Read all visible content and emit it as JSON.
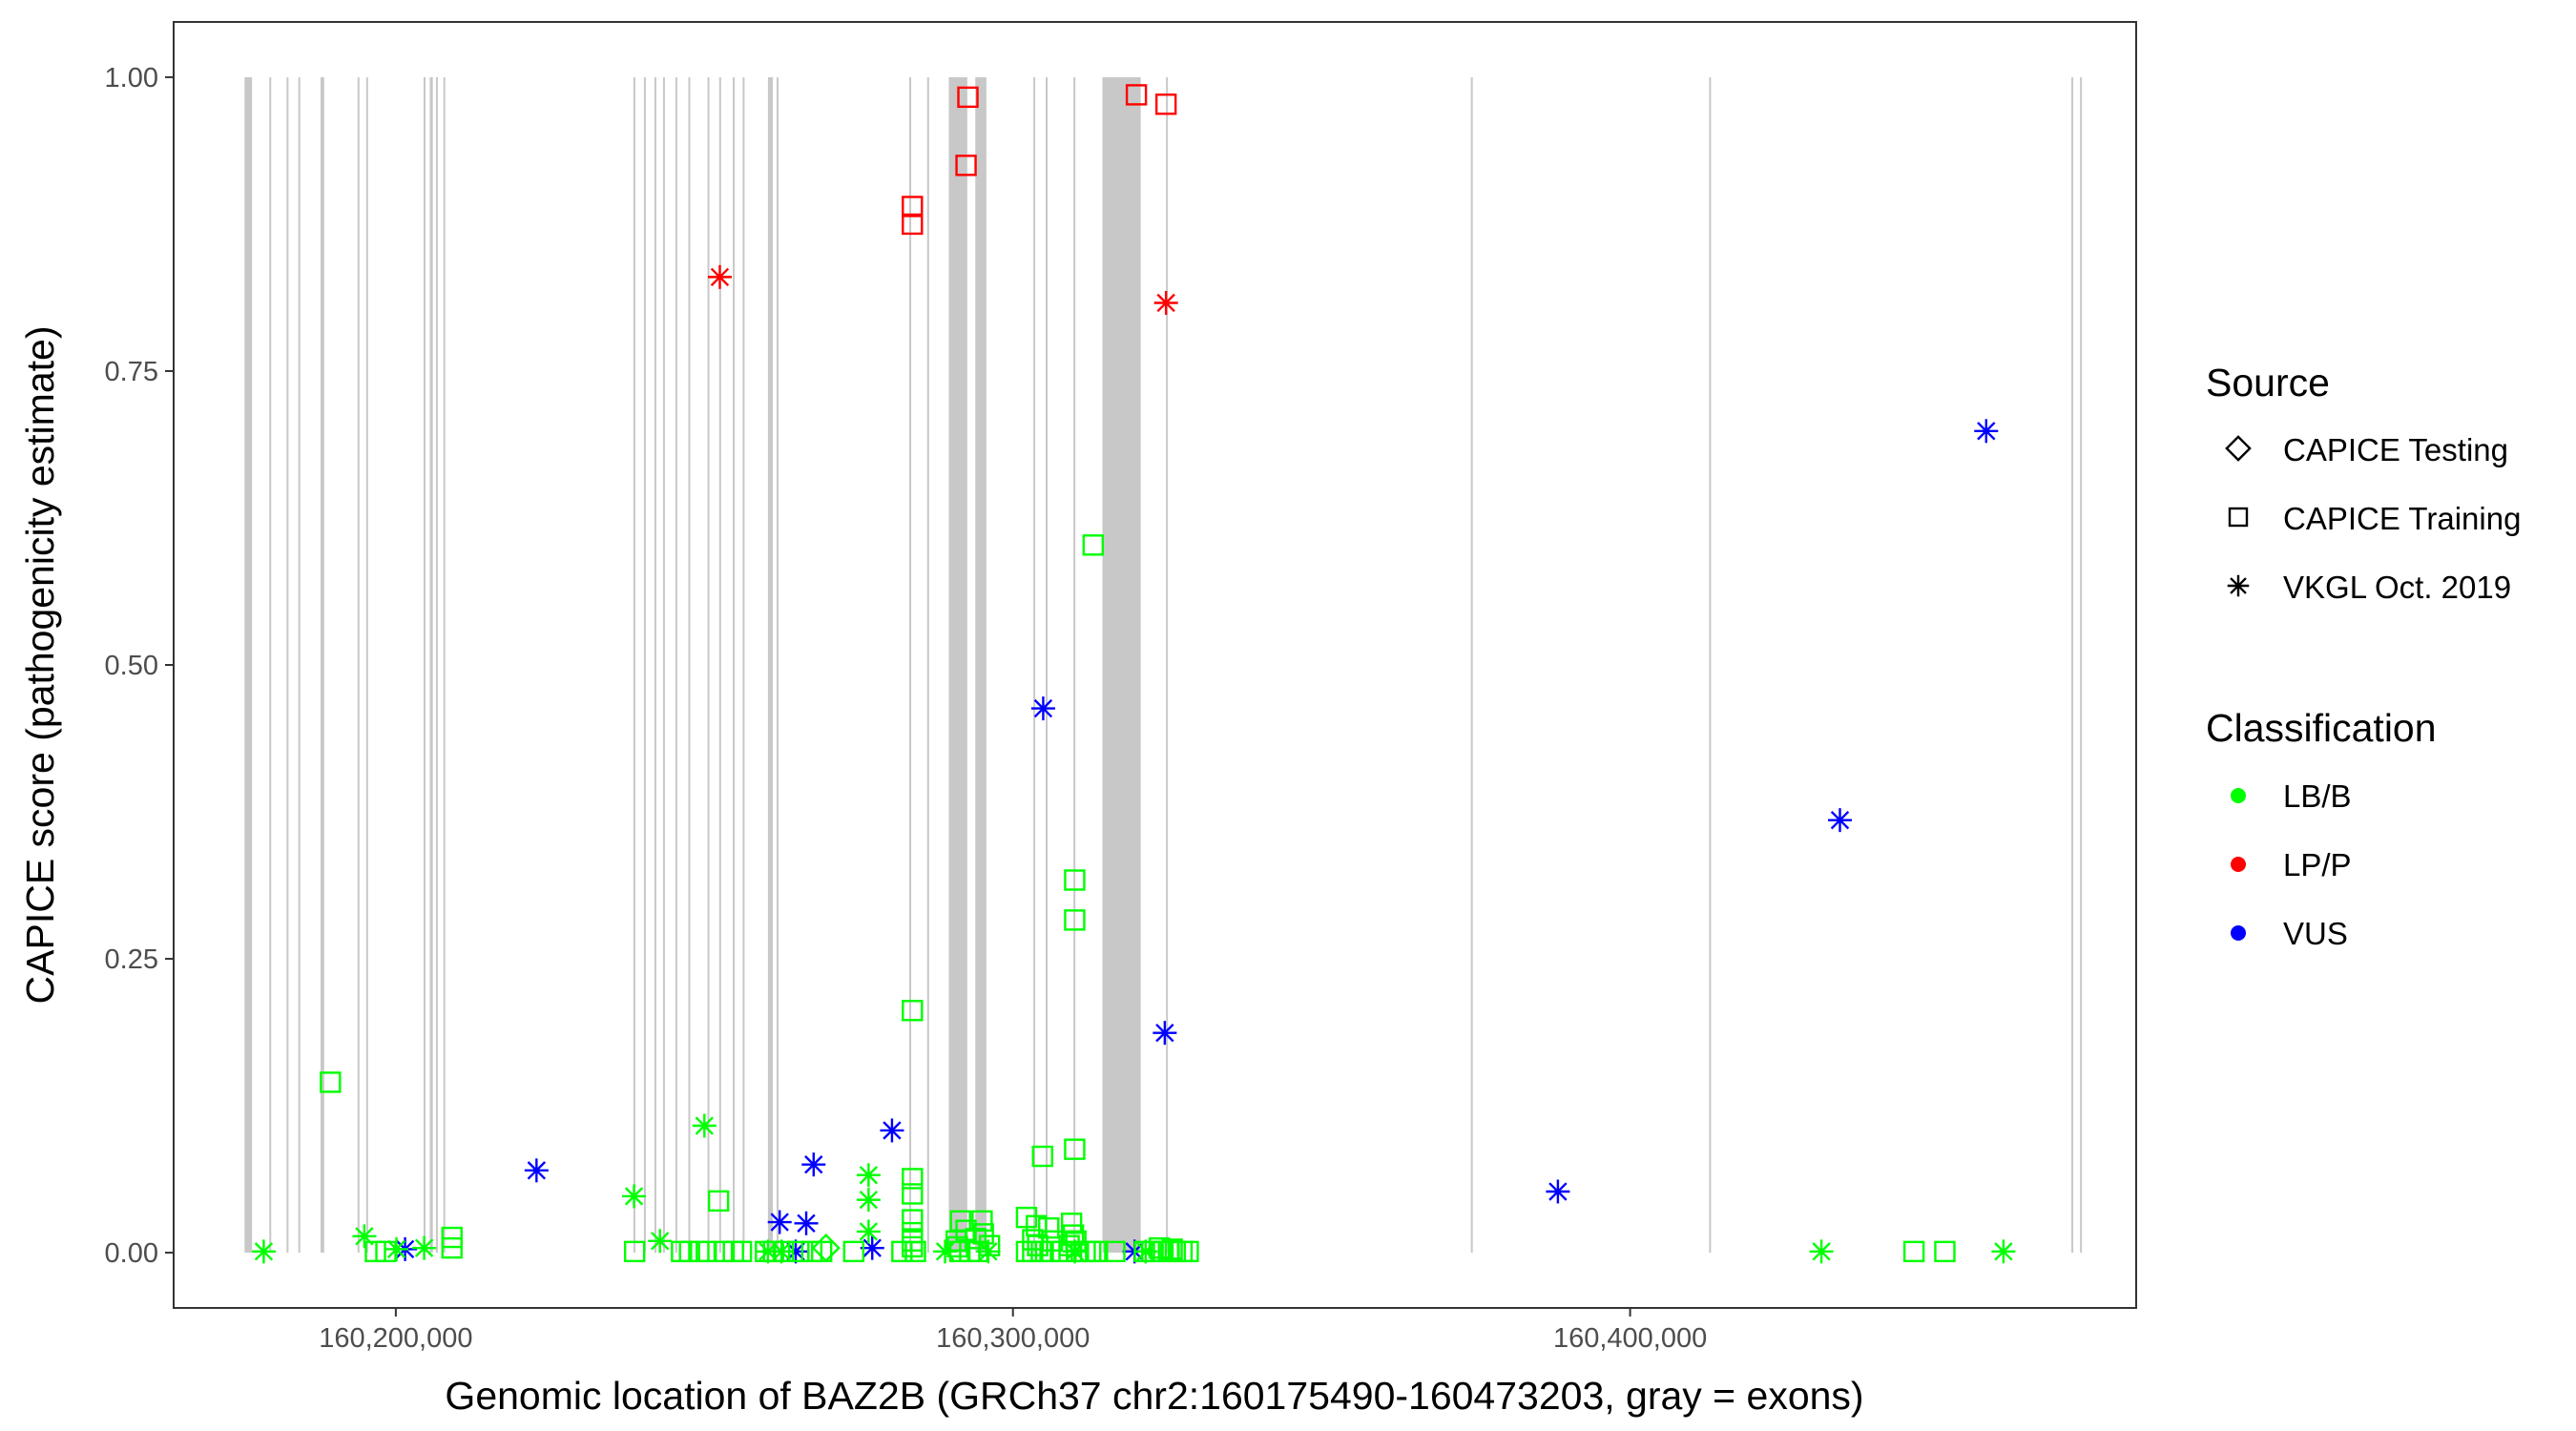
{
  "chart_data": {
    "type": "scatter",
    "xlabel": "Genomic location of BAZ2B (GRCh37 chr2:160175490-160473203, gray = exons)",
    "ylabel": "CAPICE score (pathogenicity estimate)",
    "xlim": [
      160164000,
      160482000
    ],
    "ylim": [
      -0.047,
      1.047
    ],
    "x_ticks": [
      160200000,
      160300000,
      160400000
    ],
    "x_tick_labels": [
      "160,200,000",
      "160,300,000",
      "160,400,000"
    ],
    "y_ticks": [
      0,
      0.25,
      0.5,
      0.75,
      1
    ],
    "y_tick_labels": [
      "0.00",
      "0.25",
      "0.50",
      "0.75",
      "1.00"
    ],
    "grid": false,
    "exon_color": "#c8c8c8",
    "exons": [
      [
        160175490,
        160176700
      ],
      [
        160179500,
        160179750
      ],
      [
        160182300,
        160182500
      ],
      [
        160184200,
        160184400
      ],
      [
        160187800,
        160188400
      ],
      [
        160193800,
        160194000
      ],
      [
        160195200,
        160195400
      ],
      [
        160204500,
        160204700
      ],
      [
        160205500,
        160206000
      ],
      [
        160206500,
        160206700
      ],
      [
        160207700,
        160207900
      ],
      [
        160238500,
        160238800
      ],
      [
        160240200,
        160240400
      ],
      [
        160241900,
        160242100
      ],
      [
        160243300,
        160243500
      ],
      [
        160245300,
        160245500
      ],
      [
        160247400,
        160247600
      ],
      [
        160250500,
        160250700
      ],
      [
        160252400,
        160252600
      ],
      [
        160254600,
        160254800
      ],
      [
        160256200,
        160256400
      ],
      [
        160260300,
        160261100
      ],
      [
        160261700,
        160262000
      ],
      [
        160283200,
        160283400
      ],
      [
        160286100,
        160286300
      ],
      [
        160289600,
        160292600
      ],
      [
        160293900,
        160295700
      ],
      [
        160303300,
        160303500
      ],
      [
        160305300,
        160305500
      ],
      [
        160309800,
        160310000
      ],
      [
        160314500,
        160320700
      ],
      [
        160324800,
        160325000
      ],
      [
        160374200,
        160374500
      ],
      [
        160412800,
        160413100
      ],
      [
        160471500,
        160471800
      ],
      [
        160472900,
        160473203
      ]
    ],
    "legend": {
      "source_title": "Source",
      "source_entries": [
        {
          "label": "CAPICE Testing",
          "shape": "diamond"
        },
        {
          "label": "CAPICE Training",
          "shape": "square"
        },
        {
          "label": "VKGL Oct. 2019",
          "shape": "asterisk"
        }
      ],
      "class_title": "Classification",
      "class_entries": [
        {
          "label": "LB/B",
          "color": "#00ff00"
        },
        {
          "label": "LP/P",
          "color": "#ff0000"
        },
        {
          "label": "VUS",
          "color": "#0000ff"
        }
      ]
    },
    "series": [
      {
        "shape": "square",
        "color": "#ff0000",
        "points": [
          [
            160292700,
            0.983
          ],
          [
            160292400,
            0.925
          ],
          [
            160283700,
            0.89
          ],
          [
            160283700,
            0.875
          ],
          [
            160320000,
            0.985
          ],
          [
            160324800,
            0.977
          ]
        ]
      },
      {
        "shape": "asterisk",
        "color": "#ff0000",
        "points": [
          [
            160252500,
            0.83
          ],
          [
            160324800,
            0.808
          ]
        ]
      },
      {
        "shape": "asterisk",
        "color": "#0000ff",
        "points": [
          [
            160457700,
            0.699
          ],
          [
            160304900,
            0.463
          ],
          [
            160434000,
            0.368
          ],
          [
            160324600,
            0.187
          ],
          [
            160280400,
            0.104
          ],
          [
            160267700,
            0.075
          ],
          [
            160222800,
            0.07
          ],
          [
            160388300,
            0.052
          ],
          [
            160262200,
            0.026
          ],
          [
            160266500,
            0.025
          ],
          [
            160201500,
            0.003
          ],
          [
            160264800,
            0.001
          ],
          [
            160277200,
            0.004
          ],
          [
            160319700,
            0.001
          ]
        ]
      },
      {
        "shape": "asterisk",
        "color": "#00ff00",
        "points": [
          [
            160250000,
            0.108
          ],
          [
            160276600,
            0.066
          ],
          [
            160238600,
            0.048
          ],
          [
            160276600,
            0.045
          ],
          [
            160276600,
            0.018
          ],
          [
            160194900,
            0.014
          ],
          [
            160242800,
            0.01
          ],
          [
            160200100,
            0.003
          ],
          [
            160204600,
            0.004
          ],
          [
            160178600,
            0.001
          ],
          [
            160260300,
            0.001
          ],
          [
            160262500,
            0.001
          ],
          [
            160289000,
            0.001
          ],
          [
            160296000,
            0.001
          ],
          [
            160310000,
            0.001
          ],
          [
            160321500,
            0.001
          ],
          [
            160431000,
            0.001
          ],
          [
            160460500,
            0.001
          ]
        ]
      },
      {
        "shape": "diamond",
        "color": "#00ff00",
        "points": [
          [
            160269700,
            0.004
          ]
        ]
      },
      {
        "shape": "square",
        "color": "#00ff00",
        "points": [
          [
            160313000,
            0.602
          ],
          [
            160310000,
            0.317
          ],
          [
            160310000,
            0.283
          ],
          [
            160283700,
            0.206
          ],
          [
            160189400,
            0.145
          ],
          [
            160310000,
            0.088
          ],
          [
            160304800,
            0.082
          ],
          [
            160283700,
            0.063
          ],
          [
            160283700,
            0.05
          ],
          [
            160252300,
            0.044
          ],
          [
            160302200,
            0.03
          ],
          [
            160283700,
            0.028
          ],
          [
            160291500,
            0.027
          ],
          [
            160295000,
            0.027
          ],
          [
            160309500,
            0.025
          ],
          [
            160303800,
            0.023
          ],
          [
            160305800,
            0.021
          ],
          [
            160292400,
            0.019
          ],
          [
            160283700,
            0.017
          ],
          [
            160295200,
            0.016
          ],
          [
            160309800,
            0.015
          ],
          [
            160209100,
            0.013
          ],
          [
            160283700,
            0.01
          ],
          [
            160290800,
            0.01
          ],
          [
            160294000,
            0.012
          ],
          [
            160303200,
            0.011
          ],
          [
            160306400,
            0.01
          ],
          [
            160310200,
            0.01
          ],
          [
            160283700,
            0.005
          ],
          [
            160291000,
            0.005
          ],
          [
            160296200,
            0.006
          ],
          [
            160304000,
            0.006
          ],
          [
            160309100,
            0.006
          ],
          [
            160209100,
            0.004
          ],
          [
            160323700,
            0.004
          ],
          [
            160325800,
            0.003
          ],
          [
            160196700,
            0.001
          ],
          [
            160198400,
            0.001
          ],
          [
            160238700,
            0.001
          ],
          [
            160246300,
            0.001
          ],
          [
            160247600,
            0.001
          ],
          [
            160249100,
            0.001
          ],
          [
            160250300,
            0.001
          ],
          [
            160253200,
            0.001
          ],
          [
            160254700,
            0.001
          ],
          [
            160256000,
            0.001
          ],
          [
            160259900,
            0.001
          ],
          [
            160261200,
            0.001
          ],
          [
            160262800,
            0.001
          ],
          [
            160265300,
            0.001
          ],
          [
            160267400,
            0.001
          ],
          [
            160269000,
            0.001
          ],
          [
            160274200,
            0.001
          ],
          [
            160282000,
            0.001
          ],
          [
            160284200,
            0.001
          ],
          [
            160291400,
            0.001
          ],
          [
            160293000,
            0.001
          ],
          [
            160294300,
            0.001
          ],
          [
            160302200,
            0.001
          ],
          [
            160303200,
            0.001
          ],
          [
            160304600,
            0.001
          ],
          [
            160306000,
            0.001
          ],
          [
            160308000,
            0.001
          ],
          [
            160310300,
            0.001
          ],
          [
            160311700,
            0.001
          ],
          [
            160312600,
            0.001
          ],
          [
            160313700,
            0.001
          ],
          [
            160316500,
            0.001
          ],
          [
            160321300,
            0.001
          ],
          [
            160322500,
            0.001
          ],
          [
            160324000,
            0.001
          ],
          [
            160325200,
            0.001
          ],
          [
            160326300,
            0.001
          ],
          [
            160327400,
            0.001
          ],
          [
            160328400,
            0.001
          ],
          [
            160446000,
            0.001
          ],
          [
            160451000,
            0.001
          ]
        ]
      }
    ]
  }
}
